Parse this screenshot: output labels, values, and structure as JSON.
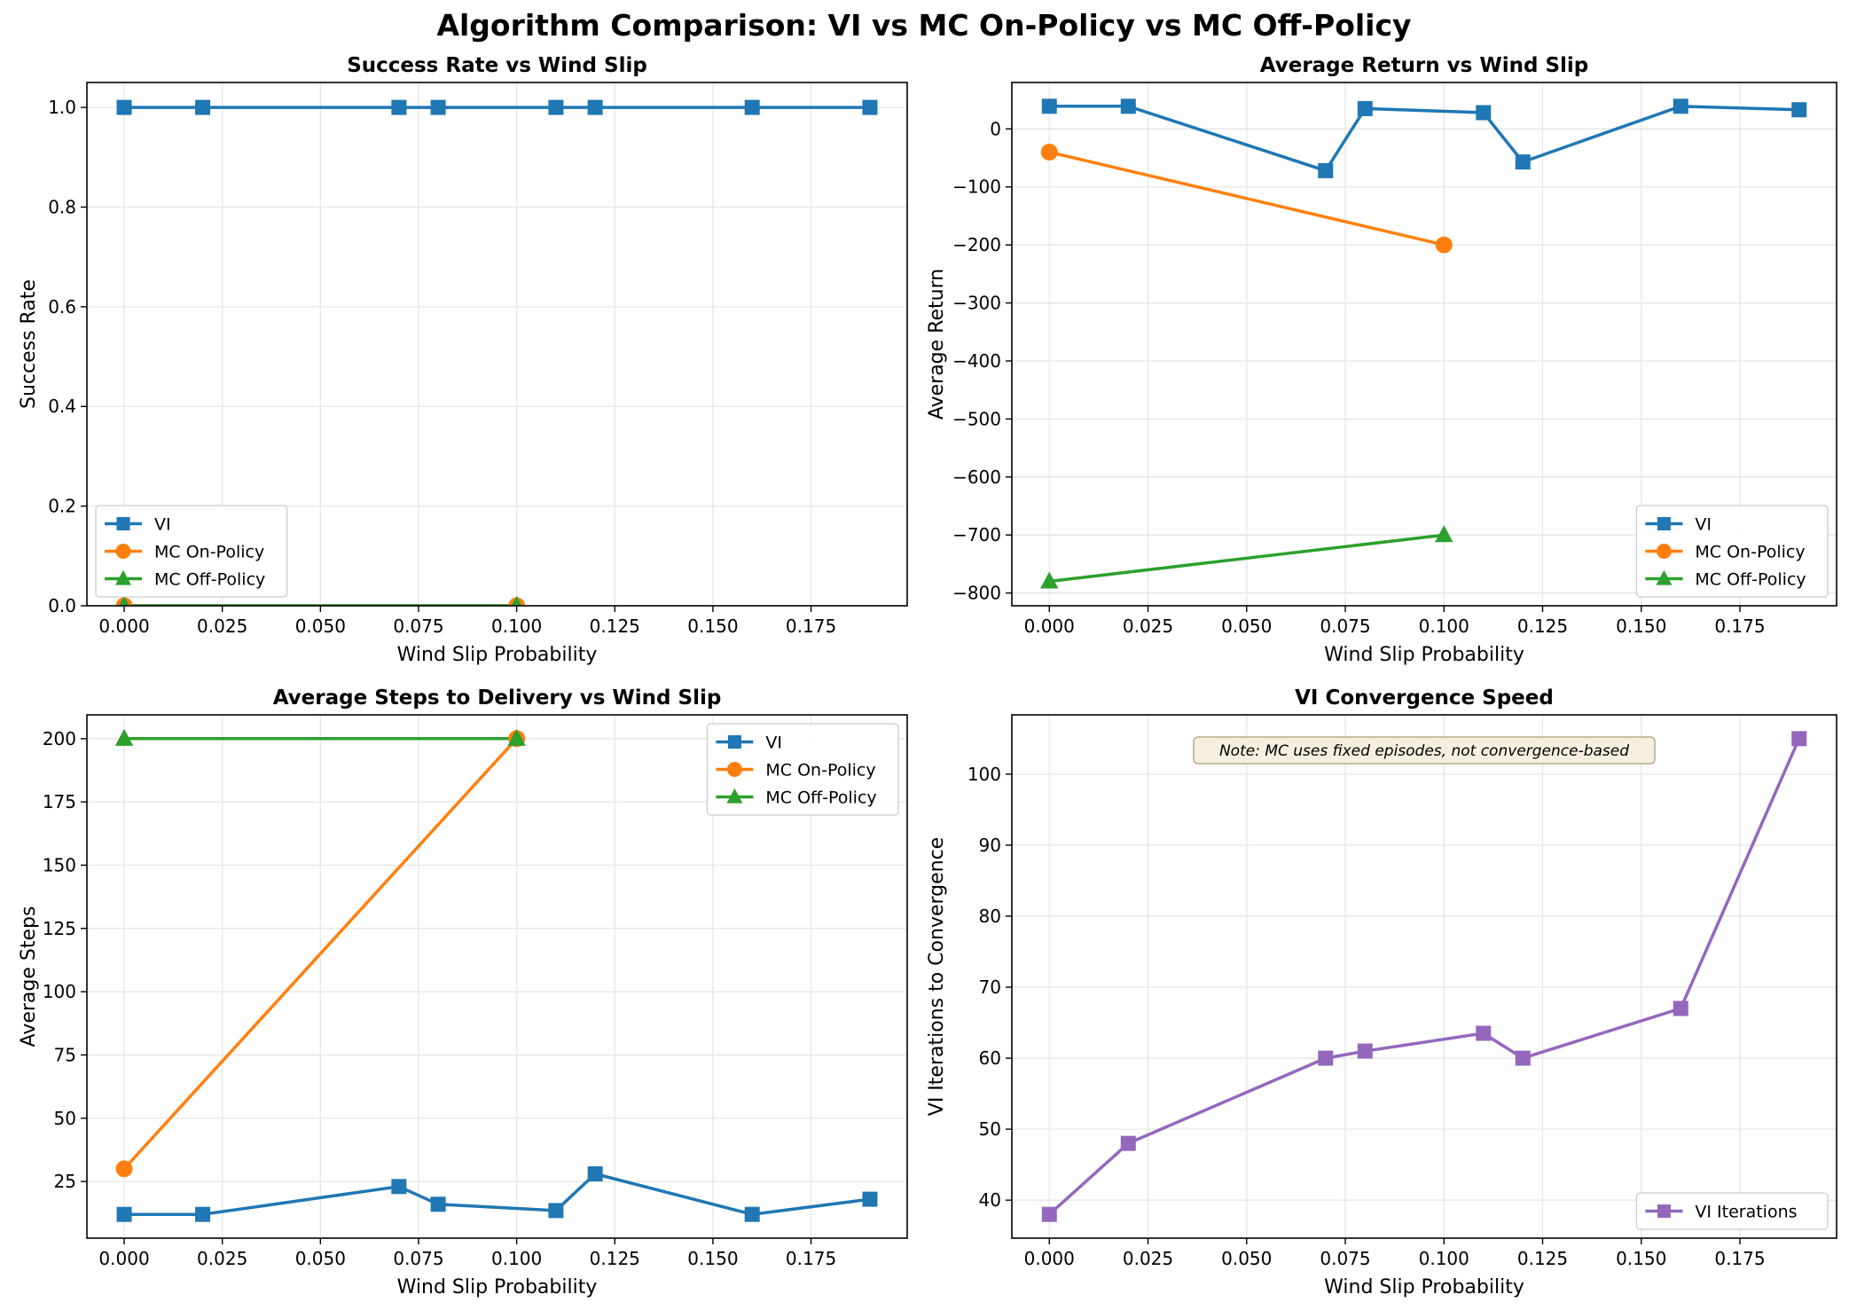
{
  "figure": {
    "title": "Algorithm Comparison: VI vs MC On-Policy vs MC Off-Policy"
  },
  "colors": {
    "vi": "#1f77b4",
    "mc_on": "#ff7f0e",
    "mc_off": "#2ca02c",
    "vi_iter": "#9467bd",
    "grid": "#e6e6e6",
    "note_bg": "#f5efe0",
    "note_border": "#b8aa88"
  },
  "chart_data": [
    {
      "id": "success",
      "type": "line",
      "title": "Success Rate vs Wind Slip",
      "xlabel": "Wind Slip Probability",
      "ylabel": "Success Rate",
      "xlim": [
        -0.0095,
        0.1995
      ],
      "ylim": [
        0.0,
        1.05
      ],
      "xticks": [
        "0.000",
        "0.025",
        "0.050",
        "0.075",
        "0.100",
        "0.125",
        "0.150",
        "0.175"
      ],
      "xtick_values": [
        0.0,
        0.025,
        0.05,
        0.075,
        0.1,
        0.125,
        0.15,
        0.175
      ],
      "yticks": [
        "0.0",
        "0.2",
        "0.4",
        "0.6",
        "0.8",
        "1.0"
      ],
      "ytick_values": [
        0.0,
        0.2,
        0.4,
        0.6,
        0.8,
        1.0
      ],
      "grid": true,
      "legend_position": "lower-left",
      "series": [
        {
          "name": "VI",
          "color": "#1f77b4",
          "marker": "square",
          "x": [
            0.0,
            0.02,
            0.07,
            0.08,
            0.11,
            0.12,
            0.16,
            0.19
          ],
          "y": [
            1.0,
            1.0,
            1.0,
            1.0,
            1.0,
            1.0,
            1.0,
            1.0
          ]
        },
        {
          "name": "MC On-Policy",
          "color": "#ff7f0e",
          "marker": "circle",
          "x": [
            0.0,
            0.1
          ],
          "y": [
            0.0,
            0.0
          ]
        },
        {
          "name": "MC Off-Policy",
          "color": "#2ca02c",
          "marker": "triangle",
          "x": [
            0.0,
            0.1
          ],
          "y": [
            0.0,
            0.0
          ]
        }
      ]
    },
    {
      "id": "return",
      "type": "line",
      "title": "Average Return vs Wind Slip",
      "xlabel": "Wind Slip Probability",
      "ylabel": "Average Return",
      "xlim": [
        -0.0095,
        0.1995
      ],
      "ylim": [
        -822,
        80
      ],
      "xticks": [
        "0.000",
        "0.025",
        "0.050",
        "0.075",
        "0.100",
        "0.125",
        "0.150",
        "0.175"
      ],
      "xtick_values": [
        0.0,
        0.025,
        0.05,
        0.075,
        0.1,
        0.125,
        0.15,
        0.175
      ],
      "yticks": [
        "−800",
        "−700",
        "−600",
        "−500",
        "−400",
        "−300",
        "−200",
        "−100",
        "0"
      ],
      "ytick_values": [
        -800,
        -700,
        -600,
        -500,
        -400,
        -300,
        -200,
        -100,
        0
      ],
      "grid": true,
      "legend_position": "lower-right",
      "series": [
        {
          "name": "VI",
          "color": "#1f77b4",
          "marker": "square",
          "x": [
            0.0,
            0.02,
            0.07,
            0.08,
            0.11,
            0.12,
            0.16,
            0.19
          ],
          "y": [
            39,
            39,
            -72,
            35,
            28,
            -57,
            39,
            33
          ]
        },
        {
          "name": "MC On-Policy",
          "color": "#ff7f0e",
          "marker": "circle",
          "x": [
            0.0,
            0.1
          ],
          "y": [
            -40,
            -200
          ]
        },
        {
          "name": "MC Off-Policy",
          "color": "#2ca02c",
          "marker": "triangle",
          "x": [
            0.0,
            0.1
          ],
          "y": [
            -780,
            -700
          ]
        }
      ]
    },
    {
      "id": "steps",
      "type": "line",
      "title": "Average Steps to Delivery vs Wind Slip",
      "xlabel": "Wind Slip Probability",
      "ylabel": "Average Steps",
      "xlim": [
        -0.0095,
        0.1995
      ],
      "ylim": [
        2.6,
        209.4
      ],
      "xticks": [
        "0.000",
        "0.025",
        "0.050",
        "0.075",
        "0.100",
        "0.125",
        "0.150",
        "0.175"
      ],
      "xtick_values": [
        0.0,
        0.025,
        0.05,
        0.075,
        0.1,
        0.125,
        0.15,
        0.175
      ],
      "yticks": [
        "25",
        "50",
        "75",
        "100",
        "125",
        "150",
        "175",
        "200"
      ],
      "ytick_values": [
        25,
        50,
        75,
        100,
        125,
        150,
        175,
        200
      ],
      "grid": true,
      "legend_position": "upper-right",
      "series": [
        {
          "name": "VI",
          "color": "#1f77b4",
          "marker": "square",
          "x": [
            0.0,
            0.02,
            0.07,
            0.08,
            0.11,
            0.12,
            0.16,
            0.19
          ],
          "y": [
            12,
            12,
            23,
            16,
            13.5,
            28,
            12,
            18
          ]
        },
        {
          "name": "MC On-Policy",
          "color": "#ff7f0e",
          "marker": "circle",
          "x": [
            0.0,
            0.1
          ],
          "y": [
            30,
            200
          ]
        },
        {
          "name": "MC Off-Policy",
          "color": "#2ca02c",
          "marker": "triangle",
          "x": [
            0.0,
            0.1
          ],
          "y": [
            200,
            200
          ]
        }
      ]
    },
    {
      "id": "convergence",
      "type": "line",
      "title": "VI Convergence Speed",
      "xlabel": "Wind Slip Probability",
      "ylabel": "VI Iterations to Convergence",
      "xlim": [
        -0.0095,
        0.1995
      ],
      "ylim": [
        34.65,
        108.35
      ],
      "xticks": [
        "0.000",
        "0.025",
        "0.050",
        "0.075",
        "0.100",
        "0.125",
        "0.150",
        "0.175"
      ],
      "xtick_values": [
        0.0,
        0.025,
        0.05,
        0.075,
        0.1,
        0.125,
        0.15,
        0.175
      ],
      "yticks": [
        "40",
        "50",
        "60",
        "70",
        "80",
        "90",
        "100"
      ],
      "ytick_values": [
        40,
        50,
        60,
        70,
        80,
        90,
        100
      ],
      "grid": true,
      "legend_position": "lower-right",
      "annotation": "Note: MC uses fixed episodes, not convergence-based",
      "series": [
        {
          "name": "VI Iterations",
          "color": "#9467bd",
          "marker": "square",
          "x": [
            0.0,
            0.02,
            0.07,
            0.08,
            0.11,
            0.12,
            0.16,
            0.19
          ],
          "y": [
            38,
            48,
            60,
            61,
            63.5,
            60,
            67,
            105
          ]
        }
      ]
    }
  ]
}
